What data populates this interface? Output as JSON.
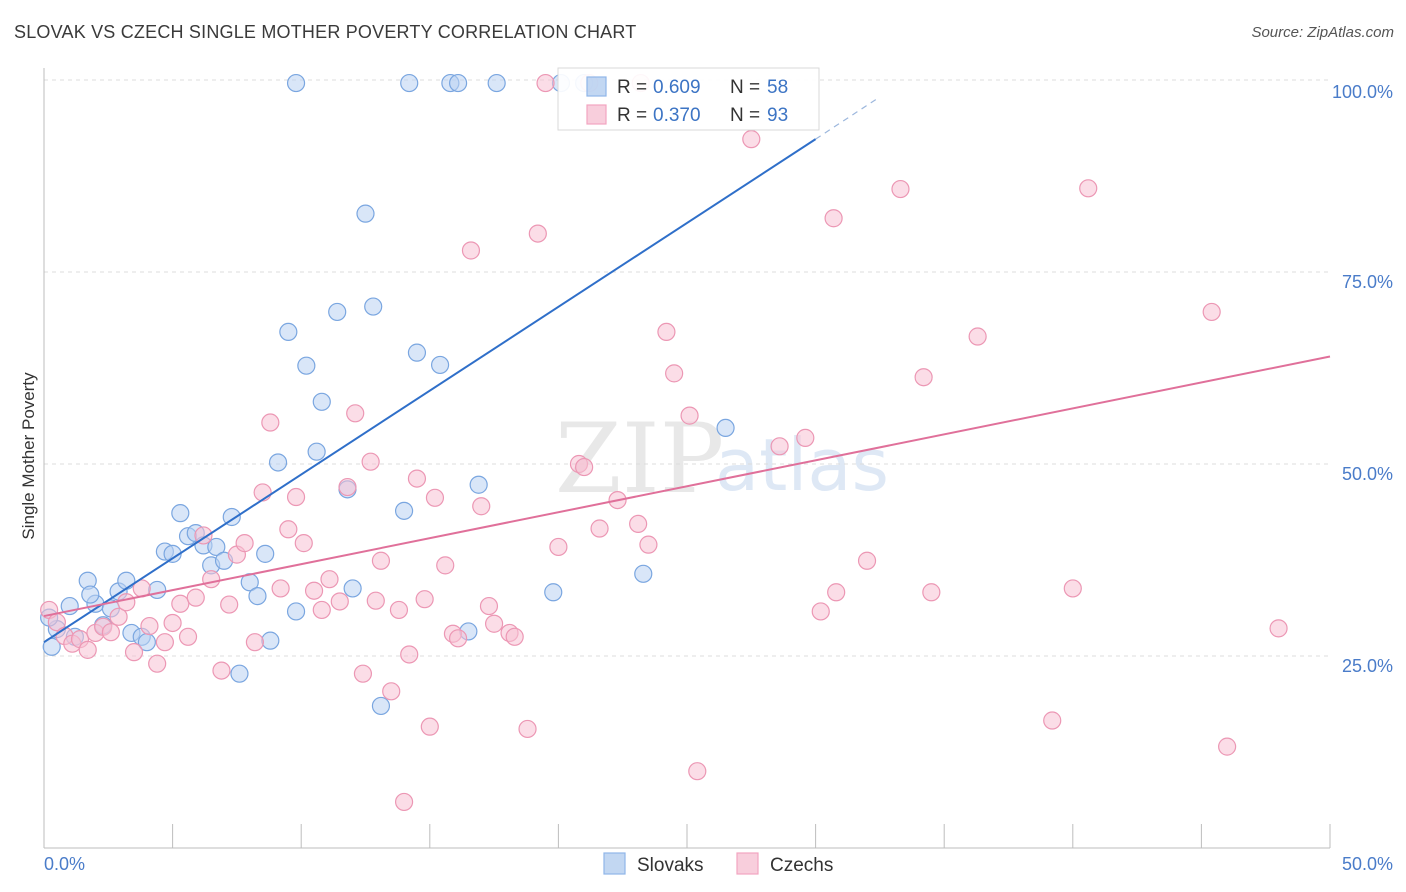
{
  "title": "SLOVAK VS CZECH SINGLE MOTHER POVERTY CORRELATION CHART",
  "source": "Source: ZipAtlas.com",
  "watermark": {
    "part1": "ZIP",
    "part2": "atlas"
  },
  "chart_data": {
    "type": "scatter",
    "ylabel": "Single Mother Poverty",
    "xlim": [
      0,
      50
    ],
    "ylim": [
      0,
      100
    ],
    "x_ticks": [
      "0.0%",
      "50.0%"
    ],
    "y_ticks": [
      {
        "value": 25,
        "label": "25.0%"
      },
      {
        "value": 50,
        "label": "50.0%"
      },
      {
        "value": 75,
        "label": "75.0%"
      },
      {
        "value": 100,
        "label": "100.0%"
      }
    ],
    "grid": "horizontal-dashed",
    "legend": [
      {
        "name": "Slovaks",
        "color": "#8fb6e8"
      },
      {
        "name": "Czechs",
        "color": "#f2a5c0"
      }
    ],
    "stats": [
      {
        "r_label": "R = ",
        "r": "0.609",
        "n_label": "N = ",
        "n": "58",
        "color": "#8fb6e8"
      },
      {
        "r_label": "R = ",
        "r": "0.370",
        "n_label": "N = ",
        "n": "93",
        "color": "#f2a5c0"
      }
    ],
    "series": [
      {
        "name": "Slovaks",
        "fill": "#b9d2f2",
        "stroke": "#7aa6e0",
        "line_color": "#2f6fc9",
        "trend": {
          "x0": 0,
          "y0": 26.8,
          "x1": 30,
          "y1": 92.3,
          "dash_x1": 32.5,
          "dash_y1": 97.8
        },
        "points": [
          [
            0.3,
            26.2
          ],
          [
            0.5,
            28.5
          ],
          [
            1.0,
            31.5
          ],
          [
            1.2,
            27.5
          ],
          [
            1.7,
            34.8
          ],
          [
            2.0,
            31.8
          ],
          [
            2.3,
            29.0
          ],
          [
            2.6,
            31.2
          ],
          [
            2.9,
            33.4
          ],
          [
            3.2,
            34.8
          ],
          [
            3.4,
            28.0
          ],
          [
            3.8,
            27.5
          ],
          [
            4.0,
            26.8
          ],
          [
            4.4,
            33.6
          ],
          [
            4.7,
            38.6
          ],
          [
            5.0,
            38.3
          ],
          [
            5.3,
            43.6
          ],
          [
            5.6,
            40.6
          ],
          [
            5.9,
            41.0
          ],
          [
            6.2,
            39.4
          ],
          [
            6.5,
            36.8
          ],
          [
            6.7,
            39.2
          ],
          [
            7.0,
            37.4
          ],
          [
            7.3,
            43.1
          ],
          [
            7.6,
            22.7
          ],
          [
            8.0,
            34.6
          ],
          [
            8.3,
            32.8
          ],
          [
            8.6,
            38.3
          ],
          [
            8.8,
            27.0
          ],
          [
            9.1,
            50.2
          ],
          [
            9.5,
            67.2
          ],
          [
            9.8,
            30.8
          ],
          [
            10.2,
            62.8
          ],
          [
            10.6,
            51.6
          ],
          [
            10.8,
            58.1
          ],
          [
            11.4,
            69.8
          ],
          [
            11.8,
            46.7
          ],
          [
            12.0,
            33.8
          ],
          [
            12.5,
            82.6
          ],
          [
            12.8,
            70.5
          ],
          [
            13.1,
            18.5
          ],
          [
            14.0,
            43.9
          ],
          [
            14.5,
            64.5
          ],
          [
            15.4,
            62.9
          ],
          [
            16.5,
            28.2
          ],
          [
            16.9,
            47.3
          ],
          [
            19.8,
            33.3
          ],
          [
            23.3,
            35.7
          ],
          [
            26.5,
            54.7
          ],
          [
            9.8,
            99.6
          ],
          [
            14.2,
            99.6
          ],
          [
            15.8,
            99.6
          ],
          [
            16.1,
            99.6
          ],
          [
            17.6,
            99.6
          ],
          [
            20.1,
            99.6
          ],
          [
            21.0,
            99.6
          ],
          [
            0.2,
            30.0
          ],
          [
            1.8,
            33.0
          ]
        ]
      },
      {
        "name": "Czechs",
        "fill": "#f7c1d3",
        "stroke": "#ec97b4",
        "line_color": "#e0709a",
        "trend": {
          "x0": 0,
          "y0": 30.2,
          "x1": 50,
          "y1": 64.0
        },
        "points": [
          [
            0.2,
            31.0
          ],
          [
            0.5,
            29.4
          ],
          [
            0.8,
            27.6
          ],
          [
            1.1,
            26.6
          ],
          [
            1.4,
            27.2
          ],
          [
            1.7,
            25.8
          ],
          [
            2.0,
            28.0
          ],
          [
            2.3,
            28.8
          ],
          [
            2.6,
            28.1
          ],
          [
            2.9,
            30.1
          ],
          [
            3.2,
            32.0
          ],
          [
            3.5,
            25.5
          ],
          [
            3.8,
            33.8
          ],
          [
            4.1,
            28.9
          ],
          [
            4.4,
            24.0
          ],
          [
            4.7,
            26.8
          ],
          [
            5.0,
            29.3
          ],
          [
            5.3,
            31.8
          ],
          [
            5.6,
            27.5
          ],
          [
            5.9,
            32.6
          ],
          [
            6.2,
            40.7
          ],
          [
            6.5,
            35.0
          ],
          [
            6.9,
            23.1
          ],
          [
            7.2,
            31.7
          ],
          [
            7.5,
            38.2
          ],
          [
            7.8,
            39.7
          ],
          [
            8.2,
            26.8
          ],
          [
            8.5,
            46.3
          ],
          [
            8.8,
            55.4
          ],
          [
            9.2,
            33.8
          ],
          [
            9.5,
            41.5
          ],
          [
            9.8,
            45.7
          ],
          [
            10.1,
            39.7
          ],
          [
            10.5,
            33.5
          ],
          [
            10.8,
            31.0
          ],
          [
            11.1,
            35.0
          ],
          [
            11.5,
            32.1
          ],
          [
            11.8,
            47.0
          ],
          [
            12.1,
            56.6
          ],
          [
            12.4,
            22.7
          ],
          [
            12.7,
            50.3
          ],
          [
            13.1,
            37.4
          ],
          [
            13.5,
            20.4
          ],
          [
            13.8,
            31.0
          ],
          [
            14.2,
            25.2
          ],
          [
            14.5,
            48.1
          ],
          [
            14.8,
            32.4
          ],
          [
            15.0,
            15.8
          ],
          [
            15.2,
            45.6
          ],
          [
            15.6,
            36.8
          ],
          [
            15.9,
            27.9
          ],
          [
            16.1,
            27.3
          ],
          [
            16.6,
            77.8
          ],
          [
            17.0,
            44.5
          ],
          [
            17.3,
            31.5
          ],
          [
            17.5,
            29.2
          ],
          [
            18.1,
            28.0
          ],
          [
            18.3,
            27.5
          ],
          [
            18.8,
            15.5
          ],
          [
            19.2,
            80.0
          ],
          [
            20.0,
            39.2
          ],
          [
            20.8,
            50.0
          ],
          [
            21.0,
            49.6
          ],
          [
            21.6,
            41.6
          ],
          [
            22.3,
            45.3
          ],
          [
            23.1,
            42.2
          ],
          [
            23.5,
            39.5
          ],
          [
            24.2,
            67.2
          ],
          [
            24.5,
            61.8
          ],
          [
            25.1,
            56.3
          ],
          [
            25.4,
            10.0
          ],
          [
            27.5,
            92.3
          ],
          [
            28.6,
            52.3
          ],
          [
            29.6,
            53.4
          ],
          [
            30.2,
            30.8
          ],
          [
            30.7,
            82.0
          ],
          [
            30.8,
            33.3
          ],
          [
            32.0,
            37.4
          ],
          [
            33.3,
            85.8
          ],
          [
            34.2,
            61.3
          ],
          [
            34.5,
            33.3
          ],
          [
            36.3,
            66.6
          ],
          [
            39.2,
            16.6
          ],
          [
            40.0,
            33.8
          ],
          [
            40.6,
            85.9
          ],
          [
            45.4,
            69.8
          ],
          [
            46.0,
            13.2
          ],
          [
            48.0,
            28.6
          ],
          [
            14.0,
            6.0
          ],
          [
            19.5,
            99.6
          ],
          [
            21.2,
            99.6
          ],
          [
            23.2,
            99.6
          ],
          [
            12.9,
            32.2
          ]
        ]
      }
    ]
  }
}
